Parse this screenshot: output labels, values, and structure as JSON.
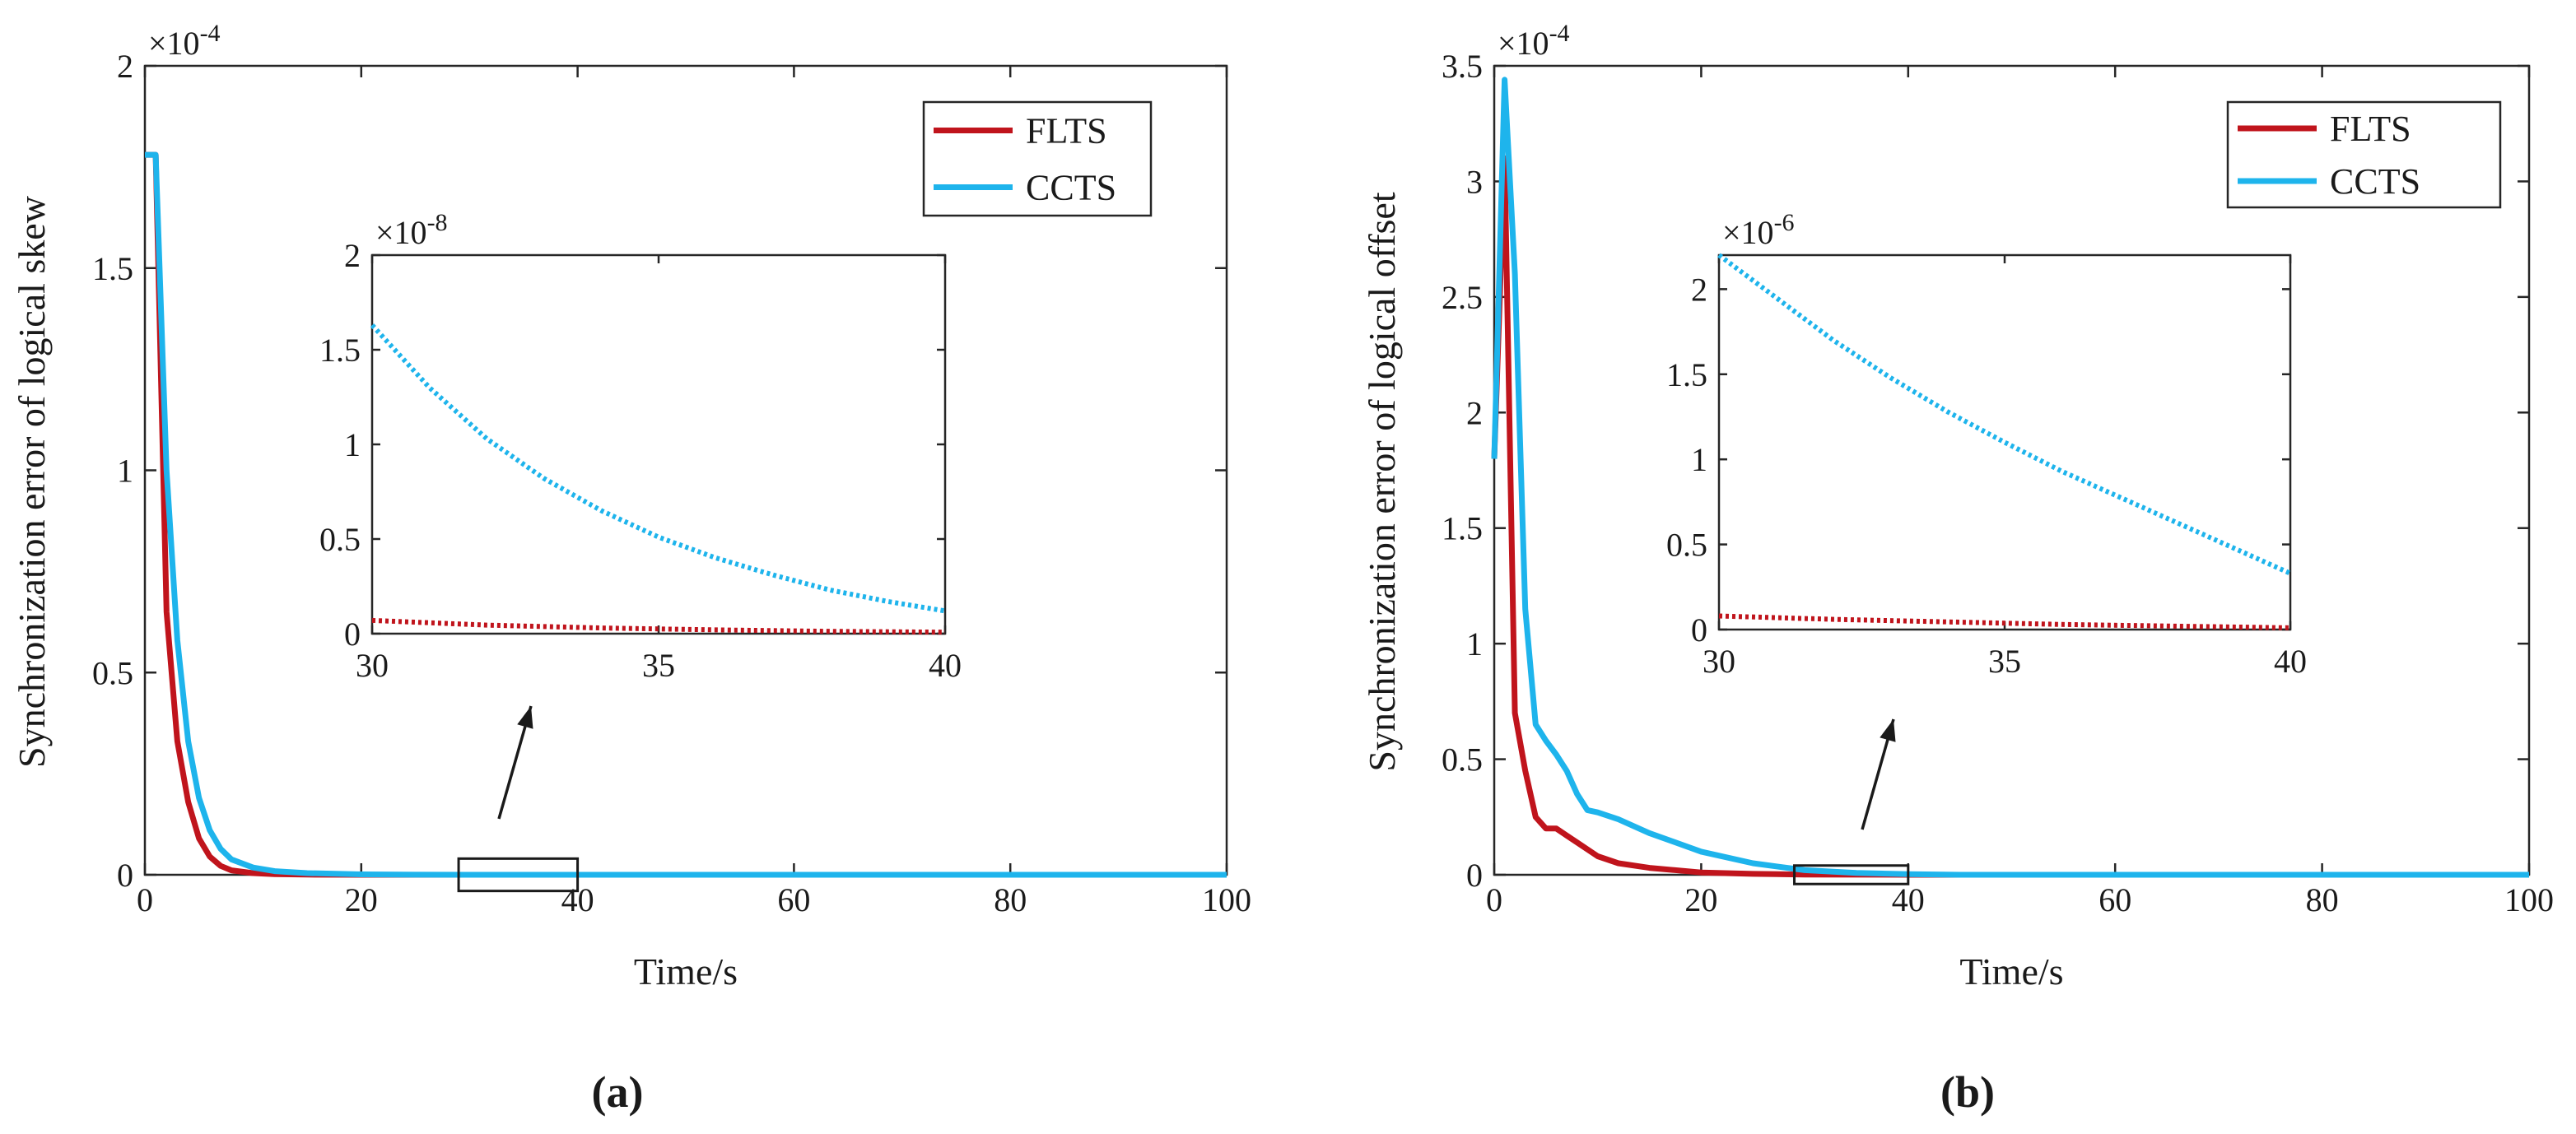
{
  "chart_data": [
    {
      "type": "line",
      "panel_label": "(a)",
      "xlabel": "Time/s",
      "ylabel": "Synchronization error of logical skew",
      "exponent_label": "×10",
      "exponent_power": "-4",
      "xlim": [
        0,
        100
      ],
      "ylim": [
        0,
        2
      ],
      "xticks": [
        0,
        20,
        40,
        60,
        80,
        100
      ],
      "yticks": [
        0,
        0.5,
        1,
        1.5,
        2
      ],
      "legend_location": "top-right",
      "highlight_box": {
        "x_range": [
          29,
          40
        ],
        "y_range": [
          -0.04,
          0.04
        ]
      },
      "series": [
        {
          "name": "FLTS",
          "color": "#c0141c",
          "x": [
            0,
            1,
            2,
            3,
            4,
            5,
            6,
            7,
            8,
            10,
            12,
            15,
            20,
            30,
            40,
            100
          ],
          "y": [
            1.78,
            1.78,
            0.65,
            0.33,
            0.18,
            0.09,
            0.045,
            0.022,
            0.011,
            0.004,
            0.0015,
            0.0005,
            0.0001,
            0,
            0,
            0
          ]
        },
        {
          "name": "CCTS",
          "color": "#1eb4ec",
          "x": [
            0,
            1,
            2,
            3,
            4,
            5,
            6,
            7,
            8,
            10,
            12,
            15,
            20,
            25,
            30,
            40,
            100
          ],
          "y": [
            1.78,
            1.78,
            1.0,
            0.58,
            0.33,
            0.19,
            0.11,
            0.064,
            0.038,
            0.018,
            0.009,
            0.004,
            0.001,
            0.0003,
            0.0001,
            0,
            0
          ]
        }
      ],
      "inset": {
        "exponent_label": "×10",
        "exponent_power": "-8",
        "xlim": [
          30,
          40
        ],
        "ylim": [
          0,
          2
        ],
        "xticks": [
          30,
          35,
          40
        ],
        "yticks": [
          0,
          0.5,
          1,
          1.5,
          2
        ],
        "series": [
          {
            "name": "FLTS",
            "color": "#c0141c",
            "x": [
              30,
              32,
              34,
              36,
              38,
              40
            ],
            "y": [
              0.07,
              0.045,
              0.03,
              0.02,
              0.012,
              0.008
            ]
          },
          {
            "name": "CCTS",
            "color": "#1eb4ec",
            "x": [
              30,
              31,
              32,
              33,
              34,
              35,
              36,
              37,
              38,
              39,
              40
            ],
            "y": [
              1.63,
              1.3,
              1.03,
              0.82,
              0.65,
              0.51,
              0.4,
              0.31,
              0.23,
              0.17,
              0.12
            ]
          }
        ]
      }
    },
    {
      "type": "line",
      "panel_label": "(b)",
      "xlabel": "Time/s",
      "ylabel": "Synchronization error of logical offset",
      "exponent_label": "×10",
      "exponent_power": "-4",
      "xlim": [
        0,
        100
      ],
      "ylim": [
        0,
        3.5
      ],
      "xticks": [
        0,
        20,
        40,
        60,
        80,
        100
      ],
      "yticks": [
        0,
        0.5,
        1,
        1.5,
        2,
        2.5,
        3,
        3.5
      ],
      "legend_location": "top-right",
      "highlight_box": {
        "x_range": [
          29,
          40
        ],
        "y_range": [
          -0.04,
          0.04
        ]
      },
      "series": [
        {
          "name": "FLTS",
          "color": "#c0141c",
          "x": [
            0,
            1,
            2,
            3,
            4,
            5,
            6,
            7,
            8,
            10,
            12,
            15,
            20,
            25,
            30,
            40,
            100
          ],
          "y": [
            1.8,
            3.1,
            0.7,
            0.45,
            0.25,
            0.2,
            0.2,
            0.17,
            0.14,
            0.08,
            0.05,
            0.03,
            0.01,
            0.004,
            0.001,
            0,
            0
          ]
        },
        {
          "name": "CCTS",
          "color": "#1eb4ec",
          "x": [
            0,
            1,
            2,
            3,
            4,
            5,
            6,
            7,
            8,
            9,
            10,
            12,
            15,
            20,
            25,
            30,
            35,
            40,
            45,
            100
          ],
          "y": [
            1.8,
            3.44,
            2.6,
            1.15,
            0.65,
            0.58,
            0.52,
            0.45,
            0.35,
            0.28,
            0.27,
            0.24,
            0.18,
            0.1,
            0.05,
            0.02,
            0.008,
            0.003,
            0,
            0
          ]
        }
      ],
      "inset": {
        "exponent_label": "×10",
        "exponent_power": "-6",
        "xlim": [
          30,
          40
        ],
        "ylim": [
          0,
          2.2
        ],
        "xticks": [
          30,
          35,
          40
        ],
        "yticks": [
          0,
          0.5,
          1,
          1.5,
          2
        ],
        "series": [
          {
            "name": "FLTS",
            "color": "#c0141c",
            "x": [
              30,
              32,
              34,
              36,
              38,
              40
            ],
            "y": [
              0.08,
              0.06,
              0.045,
              0.03,
              0.02,
              0.01
            ]
          },
          {
            "name": "CCTS",
            "color": "#1eb4ec",
            "x": [
              30,
              31,
              32,
              33,
              34,
              35,
              36,
              37,
              38,
              39,
              40
            ],
            "y": [
              2.2,
              1.95,
              1.7,
              1.48,
              1.28,
              1.1,
              0.93,
              0.78,
              0.63,
              0.48,
              0.33
            ]
          }
        ]
      }
    }
  ]
}
